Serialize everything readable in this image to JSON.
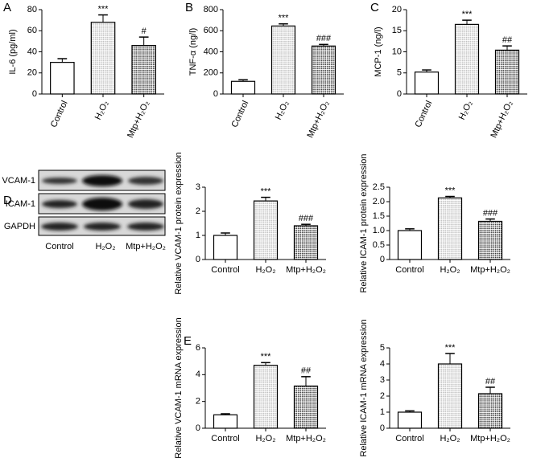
{
  "chart_data": [
    {
      "type": "bar",
      "panel": "A",
      "y_label": "IL-6 (pg/ml)",
      "categories": [
        "Control",
        "H₂O₂",
        "Mtp+H₂O₂"
      ],
      "values": [
        30,
        68,
        46
      ],
      "errors": [
        3.5,
        7,
        8
      ],
      "annotations": [
        null,
        "***",
        "#"
      ],
      "colors": [
        "#ffffff",
        "#bdbdbd",
        "#333333"
      ],
      "ylim": [
        0,
        80
      ],
      "yticks": [
        0,
        20,
        40,
        60,
        80
      ]
    },
    {
      "type": "bar",
      "panel": "B",
      "y_label": "TNF-α (ng/l)",
      "categories": [
        "Control",
        "H₂O₂",
        "Mtp+H₂O₂"
      ],
      "values": [
        120,
        645,
        455
      ],
      "errors": [
        15,
        20,
        15
      ],
      "annotations": [
        null,
        "***",
        "###"
      ],
      "colors": [
        "#ffffff",
        "#bdbdbd",
        "#333333"
      ],
      "ylim": [
        0,
        800
      ],
      "yticks": [
        0,
        200,
        400,
        600,
        800
      ]
    },
    {
      "type": "bar",
      "panel": "C",
      "y_label": "MCP-1 (ng/l)",
      "categories": [
        "Control",
        "H₂O₂",
        "Mtp+H₂O₂"
      ],
      "values": [
        5.2,
        16.5,
        10.4
      ],
      "errors": [
        0.5,
        1.0,
        1.0
      ],
      "annotations": [
        null,
        "***",
        "##"
      ],
      "colors": [
        "#ffffff",
        "#bdbdbd",
        "#333333"
      ],
      "ylim": [
        0,
        20
      ],
      "yticks": [
        0,
        5,
        10,
        15,
        20
      ]
    },
    {
      "type": "bar",
      "y_label": "Relative VCAM-1 protein expression",
      "categories": [
        "Control",
        "H₂O₂",
        "Mtp+H₂O₂"
      ],
      "values": [
        1.0,
        2.43,
        1.4
      ],
      "errors": [
        0.1,
        0.15,
        0.06
      ],
      "annotations": [
        null,
        "***",
        "###"
      ],
      "colors": [
        "#ffffff",
        "#bdbdbd",
        "#333333"
      ],
      "ylim": [
        0,
        3
      ],
      "yticks": [
        0,
        1,
        2,
        3
      ]
    },
    {
      "type": "bar",
      "y_label": "Relative ICAM-1 protein expression",
      "categories": [
        "Control",
        "H₂O₂",
        "Mtp+H₂O₂"
      ],
      "values": [
        1.0,
        2.13,
        1.32
      ],
      "errors": [
        0.06,
        0.05,
        0.08
      ],
      "annotations": [
        null,
        "***",
        "###"
      ],
      "colors": [
        "#ffffff",
        "#bdbdbd",
        "#333333"
      ],
      "ylim": [
        0,
        2.5
      ],
      "yticks": [
        0,
        0.5,
        {
          "value": 1,
          "label": "1.0"
        },
        1.5,
        {
          "value": 2,
          "label": "2.0"
        },
        2.5
      ]
    },
    {
      "type": "bar",
      "panel": "E",
      "y_label": "Relative VCAM-1 mRNA expression",
      "categories": [
        "Control",
        "H₂O₂",
        "Mtp+H₂O₂"
      ],
      "values": [
        1.0,
        4.7,
        3.15
      ],
      "errors": [
        0.08,
        0.2,
        0.7
      ],
      "annotations": [
        null,
        "***",
        "##"
      ],
      "colors": [
        "#ffffff",
        "#bdbdbd",
        "#333333"
      ],
      "ylim": [
        0,
        6
      ],
      "yticks": [
        0,
        2,
        4,
        6
      ]
    },
    {
      "type": "bar",
      "y_label": "Relative ICAM-1 mRNA expression",
      "categories": [
        "Control",
        "H₂O₂",
        "Mtp+H₂O₂"
      ],
      "values": [
        1.0,
        4.0,
        2.15
      ],
      "errors": [
        0.08,
        0.65,
        0.4
      ],
      "annotations": [
        null,
        "***",
        "##"
      ],
      "colors": [
        "#ffffff",
        "#bdbdbd",
        "#333333"
      ],
      "ylim": [
        0,
        5
      ],
      "yticks": [
        0,
        1,
        2,
        3,
        4,
        5
      ]
    }
  ],
  "blot": {
    "panel": "D",
    "rows": [
      "VCAM-1",
      "ICAM-1",
      "GAPDH"
    ],
    "lanes": [
      "Control",
      "H₂O₂",
      "Mtp+H₂O₂"
    ]
  }
}
